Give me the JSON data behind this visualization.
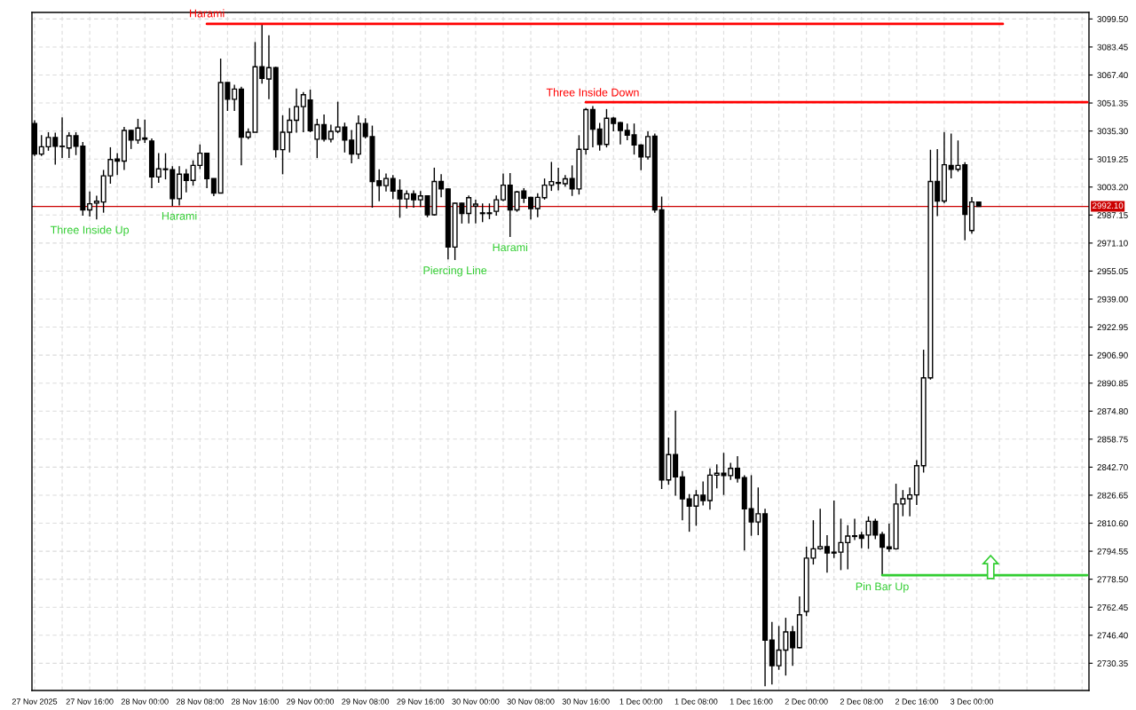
{
  "chart_data": {
    "type": "candlestick",
    "x": [
      "2025-11-27T08:00",
      "2025-11-27T09:00",
      "2025-11-27T10:00",
      "2025-11-27T11:00",
      "2025-11-27T12:00",
      "2025-11-27T13:00",
      "2025-11-27T14:00",
      "2025-11-27T15:00",
      "2025-11-27T16:00",
      "2025-11-27T17:00",
      "2025-11-27T18:00",
      "2025-11-27T19:00",
      "2025-11-27T20:00",
      "2025-11-27T21:00",
      "2025-11-27T22:00",
      "2025-11-27T23:00",
      "2025-11-28T00:00",
      "2025-11-28T01:00",
      "2025-11-28T02:00",
      "2025-11-28T03:00",
      "2025-11-28T04:00",
      "2025-11-28T05:00",
      "2025-11-28T06:00",
      "2025-11-28T07:00",
      "2025-11-28T08:00",
      "2025-11-28T09:00",
      "2025-11-28T10:00",
      "2025-11-28T11:00",
      "2025-11-28T12:00",
      "2025-11-28T13:00",
      "2025-11-28T14:00",
      "2025-11-28T15:00",
      "2025-11-28T16:00",
      "2025-11-28T17:00",
      "2025-11-28T18:00",
      "2025-11-28T19:00",
      "2025-11-28T20:00",
      "2025-11-28T21:00",
      "2025-11-28T22:00",
      "2025-11-28T23:00",
      "2025-11-29T00:00",
      "2025-11-29T01:00",
      "2025-11-29T02:00",
      "2025-11-29T03:00",
      "2025-11-29T04:00",
      "2025-11-29T05:00",
      "2025-11-29T06:00",
      "2025-11-29T07:00",
      "2025-11-29T08:00",
      "2025-11-29T09:00",
      "2025-11-29T10:00",
      "2025-11-29T11:00",
      "2025-11-29T12:00",
      "2025-11-29T13:00",
      "2025-11-29T14:00",
      "2025-11-29T15:00",
      "2025-11-29T16:00",
      "2025-11-29T17:00",
      "2025-11-29T18:00",
      "2025-11-29T19:00",
      "2025-11-29T20:00",
      "2025-11-29T21:00",
      "2025-11-29T22:00",
      "2025-11-29T23:00",
      "2025-11-30T00:00",
      "2025-11-30T01:00",
      "2025-11-30T02:00",
      "2025-11-30T03:00",
      "2025-11-30T04:00",
      "2025-11-30T05:00",
      "2025-11-30T06:00",
      "2025-11-30T07:00",
      "2025-11-30T08:00",
      "2025-11-30T09:00",
      "2025-11-30T10:00",
      "2025-11-30T11:00",
      "2025-11-30T12:00",
      "2025-11-30T13:00",
      "2025-11-30T14:00",
      "2025-11-30T15:00",
      "2025-11-30T16:00",
      "2025-11-30T17:00",
      "2025-11-30T18:00",
      "2025-11-30T19:00",
      "2025-11-30T20:00",
      "2025-11-30T21:00",
      "2025-11-30T22:00",
      "2025-11-30T23:00",
      "2025-12-01T00:00",
      "2025-12-01T01:00",
      "2025-12-01T02:00",
      "2025-12-01T03:00",
      "2025-12-01T04:00",
      "2025-12-01T05:00",
      "2025-12-01T06:00",
      "2025-12-01T07:00",
      "2025-12-01T08:00",
      "2025-12-01T09:00",
      "2025-12-01T10:00",
      "2025-12-01T11:00",
      "2025-12-01T12:00",
      "2025-12-01T13:00",
      "2025-12-01T14:00",
      "2025-12-01T15:00",
      "2025-12-01T16:00",
      "2025-12-01T17:00",
      "2025-12-01T18:00",
      "2025-12-01T19:00",
      "2025-12-01T20:00",
      "2025-12-01T21:00",
      "2025-12-01T22:00",
      "2025-12-01T23:00",
      "2025-12-02T00:00",
      "2025-12-02T01:00",
      "2025-12-02T02:00",
      "2025-12-02T03:00",
      "2025-12-02T04:00",
      "2025-12-02T05:00",
      "2025-12-02T06:00",
      "2025-12-02T07:00",
      "2025-12-02T08:00",
      "2025-12-02T09:00",
      "2025-12-02T10:00",
      "2025-12-02T11:00",
      "2025-12-02T12:00",
      "2025-12-02T13:00",
      "2025-12-02T14:00",
      "2025-12-02T15:00",
      "2025-12-02T16:00",
      "2025-12-02T17:00",
      "2025-12-02T18:00",
      "2025-12-02T19:00",
      "2025-12-02T20:00",
      "2025-12-02T21:00",
      "2025-12-02T22:00",
      "2025-12-02T23:00",
      "2025-12-03T00:00",
      "2025-12-03T01:00"
    ],
    "ohlc": [
      [
        3039.6,
        3041.5,
        3021.0,
        3022.1
      ],
      [
        3022.1,
        3033.0,
        3021.0,
        3026.3
      ],
      [
        3026.3,
        3034.6,
        3024.0,
        3031.6
      ],
      [
        3031.6,
        3034.3,
        3016.0,
        3026.6
      ],
      [
        3026.4,
        3043.1,
        3019.8,
        3026.6
      ],
      [
        3025.6,
        3034.6,
        3019.8,
        3032.6
      ],
      [
        3032.6,
        3034.6,
        3021.5,
        3026.6
      ],
      [
        3026.6,
        3029.0,
        2986.8,
        2990.1
      ],
      [
        2990.1,
        3000.6,
        2986.3,
        2993.6
      ],
      [
        2994.0,
        2998.3,
        2984.6,
        2995.1
      ],
      [
        2994.6,
        3013.0,
        2988.5,
        3009.6
      ],
      [
        3009.6,
        3026.0,
        3005.1,
        3019.0
      ],
      [
        3019.3,
        3022.6,
        3010.1,
        3018.1
      ],
      [
        3018.1,
        3037.6,
        3013.0,
        3035.6
      ],
      [
        3035.6,
        3036.0,
        3025.0,
        3030.1
      ],
      [
        3030.1,
        3042.3,
        3028.0,
        3037.0
      ],
      [
        3031.3,
        3041.8,
        3028.5,
        3030.6
      ],
      [
        3029.6,
        3031.0,
        3002.6,
        3009.0
      ],
      [
        3009.0,
        3022.6,
        3005.6,
        3013.6
      ],
      [
        3013.6,
        3022.6,
        3007.6,
        3013.2
      ],
      [
        3013.1,
        3015.1,
        2992.3,
        2996.5
      ],
      [
        2996.5,
        3015.1,
        2992.6,
        3010.6
      ],
      [
        3010.6,
        3013.5,
        3000.1,
        3007.0
      ],
      [
        3007.0,
        3018.5,
        3004.0,
        3015.6
      ],
      [
        3015.6,
        3027.6,
        3013.5,
        3022.6
      ],
      [
        3022.6,
        3022.6,
        3002.6,
        3008.0
      ],
      [
        3008.1,
        3008.1,
        2998.0,
        2999.8
      ],
      [
        2999.8,
        3076.8,
        2999.6,
        3063.1
      ],
      [
        3063.1,
        3063.1,
        3046.8,
        3053.5
      ],
      [
        3053.5,
        3061.8,
        3046.8,
        3059.3
      ],
      [
        3059.3,
        3060.6,
        3015.6,
        3031.8
      ],
      [
        3031.8,
        3036.8,
        3030.6,
        3034.6
      ],
      [
        3034.6,
        3086.3,
        3034.6,
        3072.1
      ],
      [
        3072.1,
        3097.1,
        3062.5,
        3065.5
      ],
      [
        3065.1,
        3090.1,
        3053.5,
        3071.6
      ],
      [
        3071.6,
        3072.1,
        3020.1,
        3024.6
      ],
      [
        3024.6,
        3044.3,
        3010.5,
        3034.6
      ],
      [
        3034.6,
        3048.5,
        3023.0,
        3041.5
      ],
      [
        3041.5,
        3059.6,
        3034.3,
        3049.3
      ],
      [
        3049.3,
        3057.6,
        3034.6,
        3056.1
      ],
      [
        3053.1,
        3059.0,
        3034.6,
        3035.5
      ],
      [
        3030.6,
        3042.3,
        3019.8,
        3038.9
      ],
      [
        3038.9,
        3044.8,
        3029.3,
        3030.6
      ],
      [
        3030.6,
        3038.9,
        3028.8,
        3035.1
      ],
      [
        3035.1,
        3052.1,
        3034.0,
        3037.6
      ],
      [
        3037.6,
        3040.1,
        3023.0,
        3030.1
      ],
      [
        3030.1,
        3035.9,
        3016.8,
        3022.1
      ],
      [
        3022.1,
        3044.3,
        3019.3,
        3039.6
      ],
      [
        3039.6,
        3042.6,
        3031.0,
        3032.1
      ],
      [
        3032.1,
        3038.4,
        2991.4,
        3006.4
      ],
      [
        3006.8,
        3013.4,
        2995.1,
        3004.0
      ],
      [
        3004.0,
        3010.9,
        3000.6,
        3008.1
      ],
      [
        3008.1,
        3010.1,
        2996.3,
        3000.9
      ],
      [
        3001.3,
        3007.6,
        2985.6,
        2996.4
      ],
      [
        2996.4,
        3001.3,
        2990.9,
        2999.3
      ],
      [
        2999.3,
        3001.3,
        2991.4,
        2995.9
      ],
      [
        2995.9,
        3000.9,
        2991.8,
        2998.1
      ],
      [
        2998.1,
        2998.4,
        2985.9,
        2987.3
      ],
      [
        2987.3,
        3014.3,
        2986.8,
        3006.4
      ],
      [
        3006.4,
        3010.6,
        2997.3,
        3002.1
      ],
      [
        3002.1,
        3002.5,
        2961.8,
        2968.8
      ],
      [
        2968.8,
        2994.3,
        2961.4,
        2993.9
      ],
      [
        2993.9,
        2994.3,
        2982.3,
        2988.1
      ],
      [
        2988.1,
        2998.4,
        2982.3,
        2997.1
      ],
      [
        2992.3,
        2995.9,
        2982.3,
        2993.4
      ],
      [
        2988.4,
        2993.8,
        2983.1,
        2988.0
      ],
      [
        2988.4,
        2993.8,
        2984.8,
        2988.0
      ],
      [
        2989.3,
        2998.4,
        2986.8,
        2995.9
      ],
      [
        2995.9,
        3010.9,
        2995.1,
        3004.3
      ],
      [
        3004.3,
        3011.2,
        2974.6,
        2990.1
      ],
      [
        2990.1,
        3001.0,
        2989.0,
        3000.4
      ],
      [
        3001.0,
        3002.6,
        2994.0,
        2996.8
      ],
      [
        2997.3,
        2997.6,
        2984.6,
        2990.9
      ],
      [
        2990.9,
        2999.6,
        2985.9,
        2997.3
      ],
      [
        2997.1,
        3008.1,
        2996.0,
        3004.3
      ],
      [
        3004.3,
        3017.6,
        3001.0,
        3006.3
      ],
      [
        3005.8,
        3014.3,
        3001.3,
        3005.3
      ],
      [
        3005.1,
        3010.1,
        3003.4,
        3007.9
      ],
      [
        3008.1,
        3015.6,
        2998.1,
        3002.1
      ],
      [
        3002.1,
        3032.9,
        2998.9,
        3024.8
      ],
      [
        3024.8,
        3048.5,
        3021.8,
        3047.6
      ],
      [
        3047.6,
        3049.6,
        3025.9,
        3036.4
      ],
      [
        3036.4,
        3040.0,
        3024.0,
        3027.6
      ],
      [
        3027.6,
        3047.9,
        3025.9,
        3042.6
      ],
      [
        3042.6,
        3043.4,
        3035.1,
        3039.6
      ],
      [
        3040.1,
        3040.6,
        3027.6,
        3035.6
      ],
      [
        3035.6,
        3039.6,
        3030.0,
        3032.9
      ],
      [
        3033.1,
        3039.6,
        3021.8,
        3027.3
      ],
      [
        3027.3,
        3027.8,
        3012.9,
        3020.4
      ],
      [
        3020.4,
        3035.1,
        3019.0,
        3032.1
      ],
      [
        3032.3,
        3033.9,
        2988.4,
        2990.1
      ],
      [
        2990.1,
        2997.7,
        2830.2,
        2835.4
      ],
      [
        2835.4,
        2859.7,
        2832.6,
        2849.9
      ],
      [
        2849.9,
        2875.1,
        2826.4,
        2837.1
      ],
      [
        2837.1,
        2840.5,
        2812.3,
        2824.5
      ],
      [
        2824.5,
        2827.3,
        2805.7,
        2820.4
      ],
      [
        2820.4,
        2829.6,
        2809.1,
        2826.6
      ],
      [
        2826.6,
        2834.5,
        2820.8,
        2823.6
      ],
      [
        2823.6,
        2842.0,
        2818.3,
        2838.1
      ],
      [
        2838.1,
        2844.3,
        2830.5,
        2839.2
      ],
      [
        2839.2,
        2850.9,
        2826.8,
        2837.9
      ],
      [
        2837.9,
        2845.2,
        2835.4,
        2842.0
      ],
      [
        2842.0,
        2849.0,
        2833.9,
        2836.4
      ],
      [
        2836.7,
        2838.1,
        2795.0,
        2818.9
      ],
      [
        2818.9,
        2838.1,
        2803.4,
        2811.3
      ],
      [
        2811.3,
        2831.1,
        2803.8,
        2816.0
      ],
      [
        2816.0,
        2818.9,
        2717.2,
        2743.6
      ],
      [
        2743.6,
        2754.0,
        2718.2,
        2728.9
      ],
      [
        2728.9,
        2751.7,
        2726.6,
        2737.9
      ],
      [
        2737.9,
        2756.4,
        2723.3,
        2748.3
      ],
      [
        2748.3,
        2751.7,
        2728.9,
        2739.3
      ],
      [
        2739.3,
        2768.6,
        2738.9,
        2758.1
      ],
      [
        2760.0,
        2797.2,
        2757.3,
        2790.6
      ],
      [
        2790.6,
        2812.3,
        2786.9,
        2795.9
      ],
      [
        2795.9,
        2818.9,
        2795.4,
        2797.2
      ],
      [
        2797.2,
        2803.8,
        2782.2,
        2793.5
      ],
      [
        2794.0,
        2823.6,
        2790.6,
        2793.5
      ],
      [
        2794.0,
        2813.2,
        2783.7,
        2799.5
      ],
      [
        2799.5,
        2809.5,
        2784.1,
        2803.2
      ],
      [
        2803.0,
        2813.2,
        2801.0,
        2803.4
      ],
      [
        2803.8,
        2805.7,
        2796.3,
        2801.9
      ],
      [
        2803.8,
        2814.5,
        2795.9,
        2811.7
      ],
      [
        2811.7,
        2813.2,
        2801.4,
        2803.8
      ],
      [
        2804.2,
        2805.7,
        2780.3,
        2796.9
      ],
      [
        2797.0,
        2810.3,
        2794.2,
        2795.9
      ],
      [
        2795.9,
        2833.2,
        2795.4,
        2821.6
      ],
      [
        2821.6,
        2829.6,
        2814.6,
        2824.6
      ],
      [
        2824.6,
        2831.1,
        2814.6,
        2826.8
      ],
      [
        2826.8,
        2846.7,
        2821.0,
        2843.5
      ],
      [
        2843.5,
        2910.0,
        2839.6,
        2893.9
      ],
      [
        2893.9,
        3024.6,
        2892.8,
        3006.4
      ],
      [
        3006.4,
        3025.0,
        2986.6,
        2995.2
      ],
      [
        2995.2,
        3034.7,
        2993.9,
        3016.0
      ],
      [
        3015.6,
        3033.8,
        3008.1,
        3013.4
      ],
      [
        3013.4,
        3029.9,
        3012.0,
        3015.6
      ],
      [
        3016.0,
        3017.5,
        2972.7,
        2987.5
      ],
      [
        2978.3,
        2997.5,
        2976.5,
        2994.6
      ],
      [
        2994.6,
        2994.6,
        2992.1,
        2992.1
      ]
    ],
    "color": "#000000",
    "series": [
      {
        "type": "line",
        "color": "#ff0000",
        "x": [
          "2025-11-28T09:00",
          "2025-12-03T04:30"
        ],
        "values": [
          3096.7,
          3096.7
        ]
      },
      {
        "type": "line",
        "color": "#ff0000",
        "x": [
          "2025-11-30T16:00",
          "2025-12-03T16:45"
        ],
        "values": [
          3051.8,
          3051.8
        ]
      },
      {
        "type": "line",
        "color": "#32cd32",
        "x": [
          "2025-12-02T11:00",
          "2025-12-03T16:45"
        ],
        "values": [
          2780.8,
          2780.8
        ]
      }
    ],
    "annotations": [
      {
        "text": "Three Inside Up",
        "x": "2025-11-27T16:00",
        "y": 2984.6
      },
      {
        "text": "Harami",
        "x": "2025-11-28T05:00",
        "y": 2992.6
      },
      {
        "text": "Harami",
        "x": "2025-11-28T09:00",
        "y": 3097.1
      },
      {
        "text": "Piercing Line",
        "x": "2025-11-29T21:00",
        "y": 2961.4
      },
      {
        "text": "Harami",
        "x": "2025-11-30T05:00",
        "y": 2974.6
      },
      {
        "text": "Three Inside Down",
        "x": "2025-11-30T17:00",
        "y": 3051.8
      },
      {
        "text": "Pin Bar Up",
        "x": "2025-12-02T11:00",
        "y": 2780.3
      }
    ],
    "ref_lines": [
      {
        "axis": "y",
        "value": 2992.1,
        "label": "2992.10",
        "color": "#cc0000"
      }
    ],
    "xlim": [
      "2025-11-27T07:37",
      "2025-12-03T17:00"
    ],
    "xticks": [
      {
        "value": "2025-11-27T08:00",
        "label": "27 Nov 2025"
      },
      {
        "value": "2025-11-27T12:00",
        "label": null
      },
      {
        "value": "2025-11-27T16:00",
        "label": "27 Nov 16:00"
      },
      {
        "value": "2025-11-27T20:00",
        "label": null
      },
      {
        "value": "2025-11-28T00:00",
        "label": "28 Nov 00:00"
      },
      {
        "value": "2025-11-28T04:00",
        "label": null
      },
      {
        "value": "2025-11-28T08:00",
        "label": "28 Nov 08:00"
      },
      {
        "value": "2025-11-28T12:00",
        "label": null
      },
      {
        "value": "2025-11-28T16:00",
        "label": "28 Nov 16:00"
      },
      {
        "value": "2025-11-28T20:00",
        "label": null
      },
      {
        "value": "2025-11-29T00:00",
        "label": "29 Nov 00:00"
      },
      {
        "value": "2025-11-29T04:00",
        "label": null
      },
      {
        "value": "2025-11-29T08:00",
        "label": "29 Nov 08:00"
      },
      {
        "value": "2025-11-29T12:00",
        "label": null
      },
      {
        "value": "2025-11-29T16:00",
        "label": "29 Nov 16:00"
      },
      {
        "value": "2025-11-29T20:00",
        "label": null
      },
      {
        "value": "2025-11-30T00:00",
        "label": "30 Nov 00:00"
      },
      {
        "value": "2025-11-30T04:00",
        "label": null
      },
      {
        "value": "2025-11-30T08:00",
        "label": "30 Nov 08:00"
      },
      {
        "value": "2025-11-30T12:00",
        "label": null
      },
      {
        "value": "2025-11-30T16:00",
        "label": "30 Nov 16:00"
      },
      {
        "value": "2025-11-30T20:00",
        "label": null
      },
      {
        "value": "2025-12-01T00:00",
        "label": "1 Dec 00:00"
      },
      {
        "value": "2025-12-01T04:00",
        "label": null
      },
      {
        "value": "2025-12-01T08:00",
        "label": "1 Dec 08:00"
      },
      {
        "value": "2025-12-01T12:00",
        "label": null
      },
      {
        "value": "2025-12-01T16:00",
        "label": "1 Dec 16:00"
      },
      {
        "value": "2025-12-01T20:00",
        "label": null
      },
      {
        "value": "2025-12-02T00:00",
        "label": "2 Dec 00:00"
      },
      {
        "value": "2025-12-02T04:00",
        "label": null
      },
      {
        "value": "2025-12-02T08:00",
        "label": "2 Dec 08:00"
      },
      {
        "value": "2025-12-02T12:00",
        "label": null
      },
      {
        "value": "2025-12-02T16:00",
        "label": "2 Dec 16:00"
      },
      {
        "value": "2025-12-02T20:00",
        "label": null
      },
      {
        "value": "2025-12-03T00:00",
        "label": "3 Dec 00:00"
      },
      {
        "value": "2025-12-03T04:00",
        "label": null
      },
      {
        "value": "2025-12-03T08:00",
        "label": null
      },
      {
        "value": "2025-12-03T12:00",
        "label": null
      },
      {
        "value": "2025-12-03T16:00",
        "label": null
      }
    ],
    "ylim": [
      2714.75,
      3103.25
    ],
    "yticks": [
      {
        "value": 2730.35,
        "label": "2730.35"
      },
      {
        "value": 2746.4,
        "label": "2746.40"
      },
      {
        "value": 2762.45,
        "label": "2762.45"
      },
      {
        "value": 2778.5,
        "label": "2778.50"
      },
      {
        "value": 2794.55,
        "label": "2794.55"
      },
      {
        "value": 2810.6,
        "label": "2810.60"
      },
      {
        "value": 2826.65,
        "label": "2826.65"
      },
      {
        "value": 2842.7,
        "label": "2842.70"
      },
      {
        "value": 2858.75,
        "label": "2858.75"
      },
      {
        "value": 2874.8,
        "label": "2874.80"
      },
      {
        "value": 2890.85,
        "label": "2890.85"
      },
      {
        "value": 2906.9,
        "label": "2906.90"
      },
      {
        "value": 2922.95,
        "label": "2922.95"
      },
      {
        "value": 2939.0,
        "label": "2939.00"
      },
      {
        "value": 2955.05,
        "label": "2955.05"
      },
      {
        "value": 2971.1,
        "label": "2971.10"
      },
      {
        "value": 2987.15,
        "label": "2987.15"
      },
      {
        "value": 3003.2,
        "label": "3003.20"
      },
      {
        "value": 3019.25,
        "label": "3019.25"
      },
      {
        "value": 3035.3,
        "label": "3035.30"
      },
      {
        "value": 3051.35,
        "label": "3051.35"
      },
      {
        "value": 3067.4,
        "label": "3067.40"
      },
      {
        "value": 3083.45,
        "label": "3083.45"
      },
      {
        "value": 3099.5,
        "label": "3099.50"
      }
    ],
    "grid": true
  }
}
